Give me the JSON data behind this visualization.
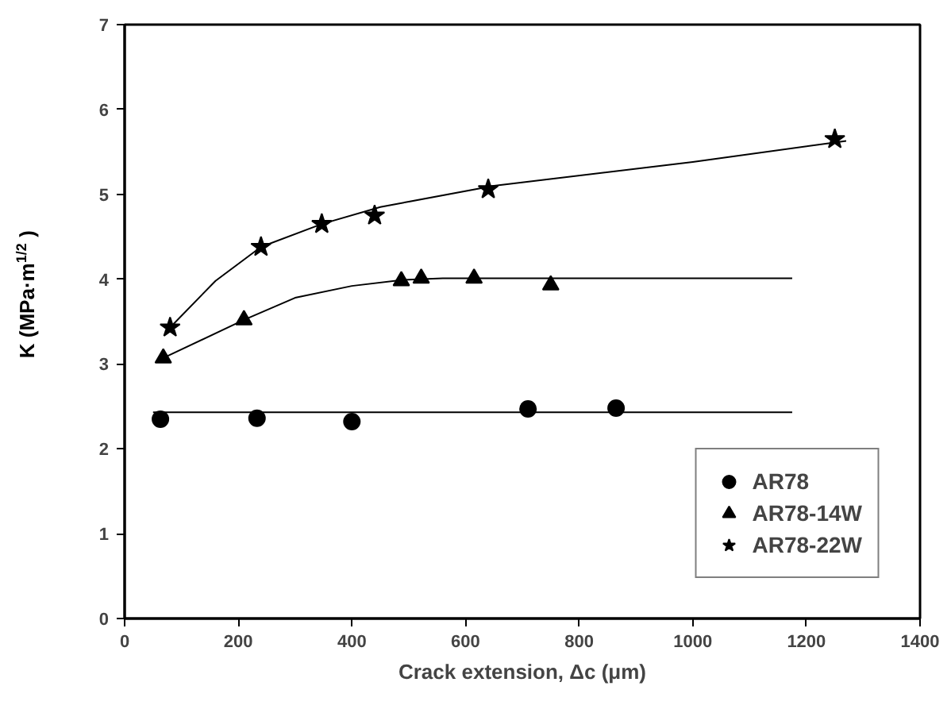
{
  "chart_data": {
    "type": "scatter",
    "xlabel": "Crack extension, Δc (μm)",
    "ylabel": "K (MPa·m$^{1/2}$)",
    "xlim": [
      0,
      1400
    ],
    "ylim": [
      0,
      7
    ],
    "xticks": [
      0,
      200,
      400,
      600,
      800,
      1000,
      1200,
      1400
    ],
    "yticks": [
      0,
      1,
      2,
      3,
      4,
      5,
      6,
      7
    ],
    "grid": false,
    "legend": "bottom right",
    "series": [
      {
        "name": "AR78",
        "color": "#000000",
        "marker": "circle",
        "x": [
          63,
          233,
          400,
          710,
          865
        ],
        "values": [
          2.35,
          2.36,
          2.32,
          2.47,
          2.48
        ]
      },
      {
        "name": "AR78-14W",
        "color": "#000000",
        "marker": "triangle",
        "x": [
          68,
          210,
          487,
          522,
          615,
          750
        ],
        "values": [
          3.07,
          3.52,
          3.98,
          4.01,
          4.01,
          3.93
        ]
      },
      {
        "name": "AR78-22W",
        "color": "#000000",
        "marker": "star",
        "x": [
          80,
          240,
          347,
          440,
          640,
          1250
        ],
        "values": [
          3.43,
          4.38,
          4.65,
          4.75,
          5.06,
          5.65
        ]
      },
      {
        "type": "line",
        "color": "#000000",
        "marker": "none",
        "x": [
          50,
          1175
        ],
        "values": [
          2.43,
          2.43
        ]
      },
      {
        "type": "line",
        "color": "#000000",
        "marker": "none",
        "x": [
          68,
          210,
          300,
          400,
          487,
          560,
          1175
        ],
        "values": [
          3.07,
          3.52,
          3.78,
          3.92,
          3.99,
          4.01,
          4.01
        ]
      },
      {
        "type": "line",
        "color": "#000000",
        "marker": "none",
        "x": [
          80,
          160,
          240,
          347,
          450,
          650,
          1000,
          1270
        ],
        "values": [
          3.43,
          3.98,
          4.38,
          4.65,
          4.85,
          5.1,
          5.38,
          5.63
        ]
      }
    ]
  }
}
